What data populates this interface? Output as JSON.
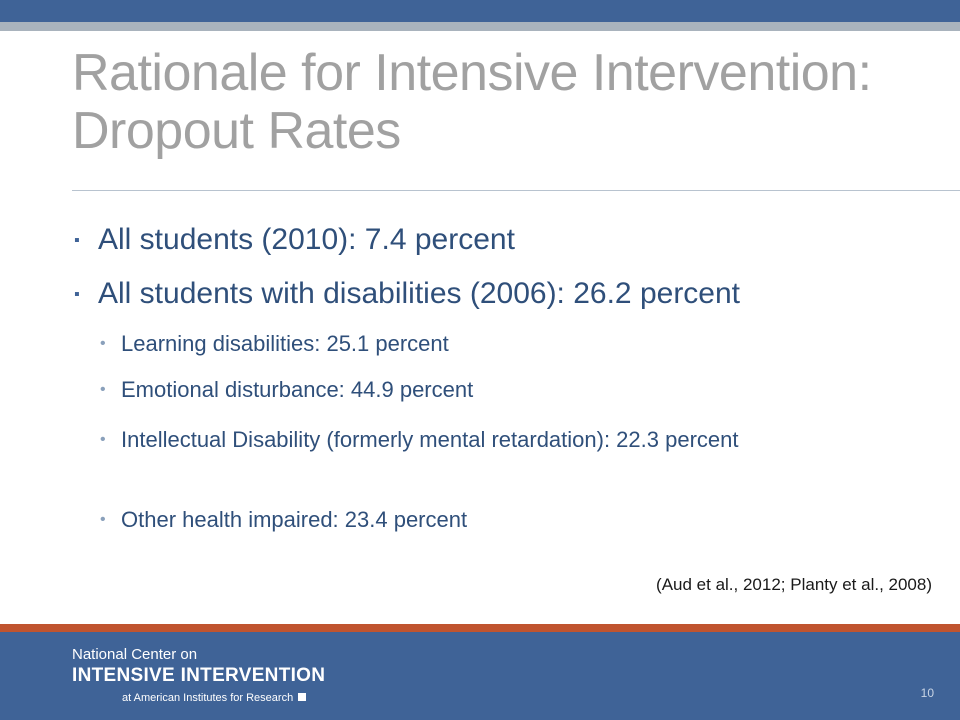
{
  "slide": {
    "title_line1": "Rationale for Intensive Intervention:",
    "title_line2": "Dropout Rates",
    "bullets": [
      {
        "text": "All students (2010): 7.4 percent"
      },
      {
        "text": "All students with disabilities (2006): 26.2 percent"
      }
    ],
    "sub_bullets": [
      {
        "text": "Learning disabilities: 25.1 percent"
      },
      {
        "text": "Emotional disturbance: 44.9 percent"
      },
      {
        "text": "Intellectual Disability (formerly mental retardation): 22.3 percent"
      },
      {
        "text": "Other health impaired: 23.4 percent"
      }
    ],
    "citation": "(Aud et al., 2012; Planty et al., 2008)",
    "page_number": "10"
  },
  "footer": {
    "logo_line1": "National Center on",
    "logo_line2": "INTENSIVE INTERVENTION",
    "logo_line3": "at American Institutes for Research"
  },
  "colors": {
    "header_bar": "#3f6397",
    "header_stripe": "#a9b3bd",
    "title": "#a1a1a1",
    "body_text": "#2f4f7a",
    "accent_stripe": "#c0542f",
    "footer_bg": "#3f6397"
  }
}
